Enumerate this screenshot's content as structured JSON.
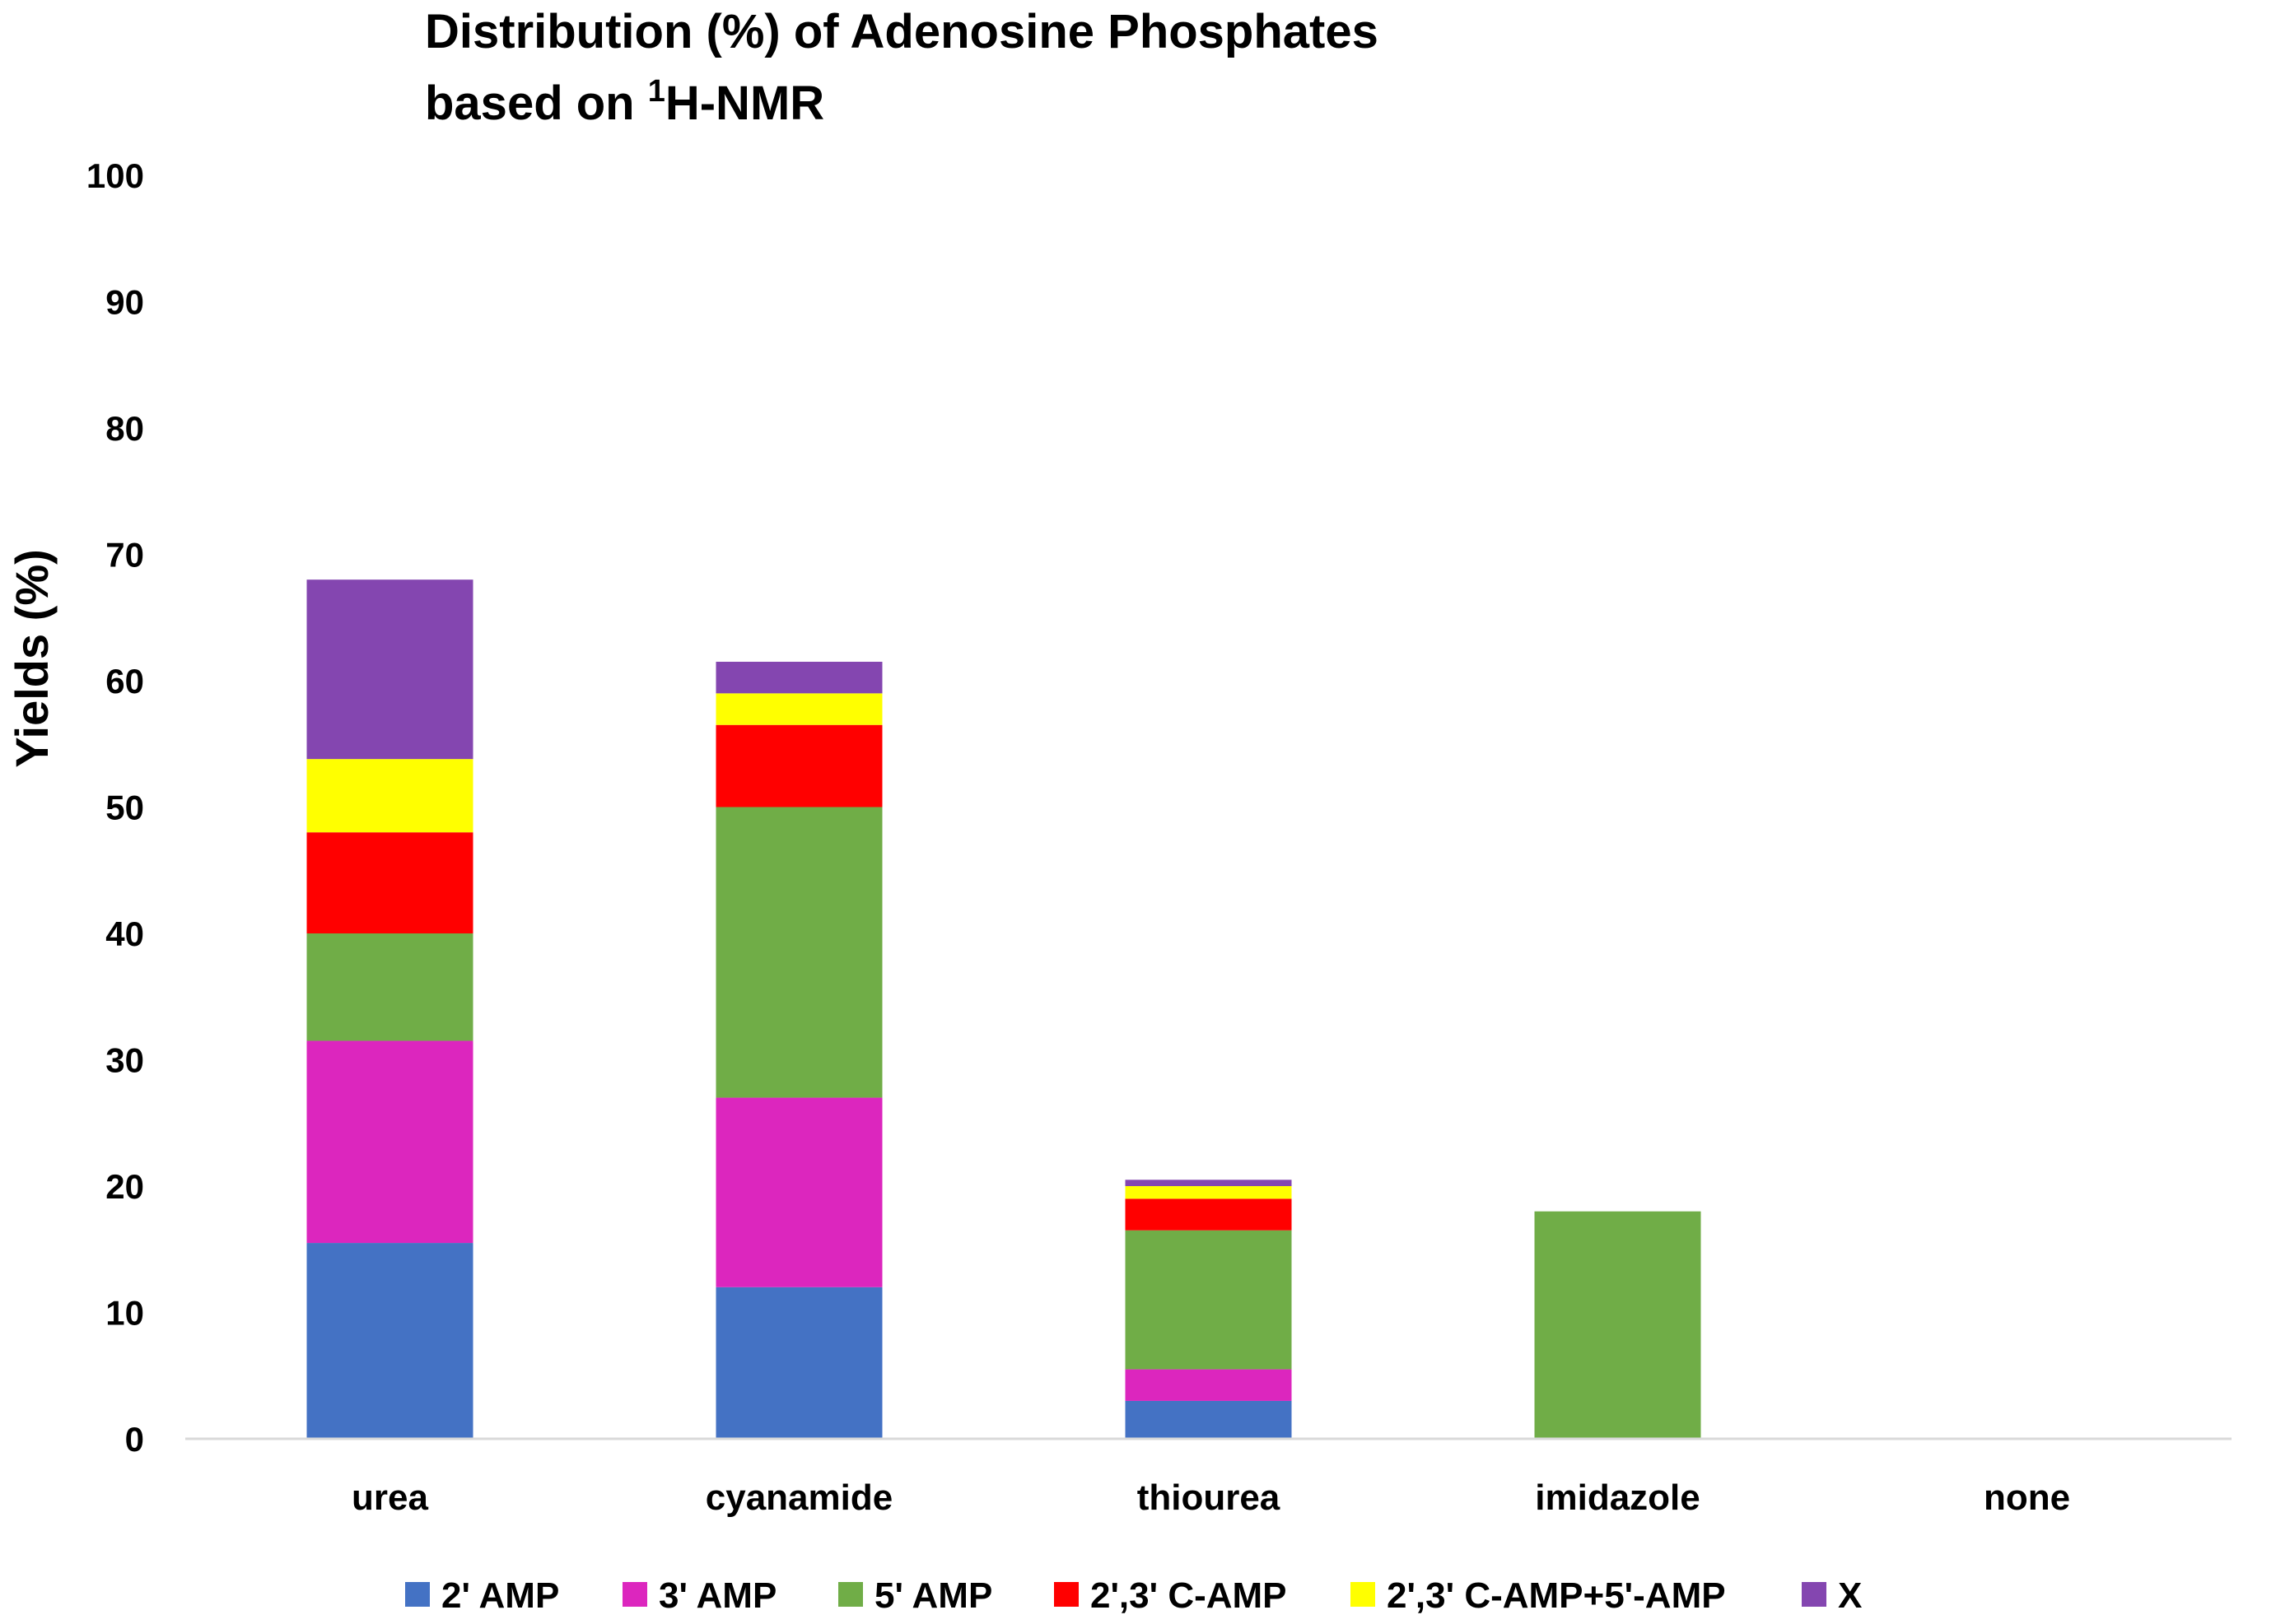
{
  "chart_data": {
    "type": "bar",
    "stacked": true,
    "title_line1": "Distribution (%) of Adenosine Phosphates",
    "title_line2_prefix": "based on ",
    "title_line2_sup": "1",
    "title_line2_suffix": "H-NMR",
    "xlabel": "",
    "ylabel": "Yields (%)",
    "ylim": [
      0,
      100
    ],
    "yticks": [
      0,
      10,
      20,
      30,
      40,
      50,
      60,
      70,
      80,
      90,
      100
    ],
    "grid": false,
    "legend_position": "bottom",
    "categories": [
      "urea",
      "cyanamide",
      "thiourea",
      "imidazole",
      "none"
    ],
    "series": [
      {
        "name": "2' AMP",
        "color": "#4472C4",
        "values": [
          15.5,
          12,
          3,
          0,
          0
        ]
      },
      {
        "name": "3' AMP",
        "color": "#DC26BE",
        "values": [
          16,
          15,
          2.5,
          0,
          0
        ]
      },
      {
        "name": "5' AMP",
        "color": "#70AD47",
        "values": [
          8.5,
          23,
          11,
          18,
          0
        ]
      },
      {
        "name": "2',3' C-AMP",
        "color": "#FF0000",
        "values": [
          8,
          6.5,
          2.5,
          0,
          0
        ]
      },
      {
        "name": "2',3' C-AMP+5'-AMP",
        "color": "#FFFF00",
        "values": [
          5.8,
          2.5,
          1,
          0,
          0
        ]
      },
      {
        "name": "X",
        "color": "#8446B0",
        "values": [
          14.2,
          2.5,
          0.5,
          0,
          0
        ]
      }
    ]
  }
}
